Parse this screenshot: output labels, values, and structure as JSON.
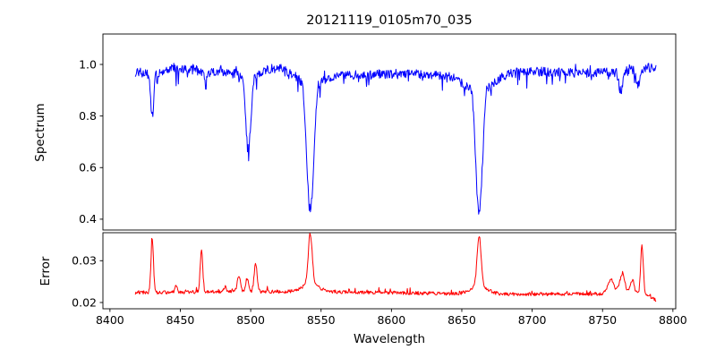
{
  "title": "20121119_0105m70_035",
  "xlabel": "Wavelength",
  "xticks": {
    "values": [
      8400,
      8450,
      8500,
      8550,
      8600,
      8650,
      8700,
      8750,
      8800
    ],
    "labels": [
      "8400",
      "8450",
      "8500",
      "8550",
      "8600",
      "8650",
      "8700",
      "8750",
      "8800"
    ]
  },
  "chart_data": [
    {
      "type": "line",
      "panel": "spectrum",
      "ylabel": "Spectrum",
      "line_color": "#0000ff",
      "xlim": [
        8395,
        8802
      ],
      "ylim": [
        0.358,
        1.118
      ],
      "yticks": [
        0.4,
        0.6,
        0.8,
        1.0
      ],
      "ytick_labels": [
        "0.4",
        "0.6",
        "0.8",
        "1.0"
      ],
      "data_x_range": [
        8418,
        8788
      ],
      "continuum": 0.968,
      "noise_amplitude": 0.018,
      "absorption_lines": [
        {
          "center": 8430.0,
          "depth": 0.175,
          "width": 1.2
        },
        {
          "center": 8468.0,
          "depth": 0.06,
          "width": 1.0
        },
        {
          "center": 8498.3,
          "depth": 0.305,
          "width": 1.9
        },
        {
          "center": 8542.3,
          "depth": 0.545,
          "width": 2.6
        },
        {
          "center": 8662.3,
          "depth": 0.525,
          "width": 2.5
        },
        {
          "center": 8763.0,
          "depth": 0.08,
          "width": 1.6
        },
        {
          "center": 8775.0,
          "depth": 0.07,
          "width": 1.2
        }
      ],
      "grid": false,
      "legend": false
    },
    {
      "type": "line",
      "panel": "error",
      "ylabel": "Error",
      "line_color": "#ff0000",
      "xlim": [
        8395,
        8802
      ],
      "ylim": [
        0.0185,
        0.0367
      ],
      "yticks": [
        0.02,
        0.03
      ],
      "ytick_labels": [
        "0.02",
        "0.03"
      ],
      "data_x_range": [
        8418,
        8788
      ],
      "baseline": 0.0223,
      "noise_amplitude": 0.0004,
      "spikes": [
        {
          "center": 8430.0,
          "amp": 0.0125,
          "width": 0.9
        },
        {
          "center": 8447.0,
          "amp": 0.0018,
          "width": 0.8
        },
        {
          "center": 8465.0,
          "amp": 0.0102,
          "width": 0.9
        },
        {
          "center": 8482.0,
          "amp": 0.0014,
          "width": 0.8
        },
        {
          "center": 8491.5,
          "amp": 0.0038,
          "width": 1.1
        },
        {
          "center": 8497.5,
          "amp": 0.003,
          "width": 1.0
        },
        {
          "center": 8503.5,
          "amp": 0.0065,
          "width": 1.1
        },
        {
          "center": 8542.3,
          "amp": 0.0122,
          "width": 1.4
        },
        {
          "center": 8542.3,
          "amp": 0.0018,
          "width": 6.0
        },
        {
          "center": 8662.3,
          "amp": 0.0122,
          "width": 1.4
        },
        {
          "center": 8662.3,
          "amp": 0.0018,
          "width": 6.0
        },
        {
          "center": 8756.0,
          "amp": 0.0034,
          "width": 2.2
        },
        {
          "center": 8764.0,
          "amp": 0.0046,
          "width": 1.8
        },
        {
          "center": 8771.0,
          "amp": 0.003,
          "width": 1.4
        },
        {
          "center": 8778.0,
          "amp": 0.0115,
          "width": 0.9
        }
      ],
      "grid": false,
      "legend": false
    }
  ]
}
